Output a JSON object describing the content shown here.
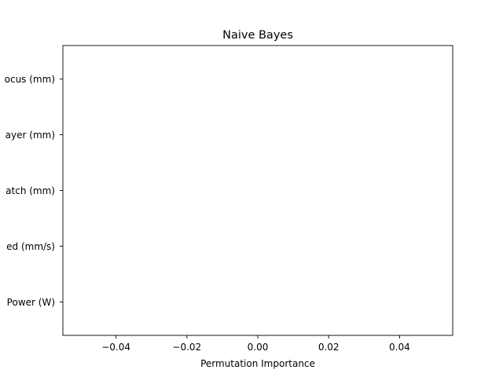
{
  "chart_data": {
    "type": "bar",
    "orientation": "horizontal",
    "title": "Naive Bayes",
    "xlabel": "Permutation Importance",
    "ylabel": "",
    "categories": [
      "Laser Power (W)",
      "Scan Speed (mm/s)",
      "Hatch (mm)",
      "Layer (mm)",
      "Focus (mm)"
    ],
    "category_labels_visible": [
      "Power (W)",
      "ed (mm/s)",
      "atch (mm)",
      "ayer (mm)",
      "ocus (mm)"
    ],
    "values": [
      0,
      0,
      0,
      0,
      0
    ],
    "xlim": [
      -0.055,
      0.055
    ],
    "xticks": [
      -0.04,
      -0.02,
      0.0,
      0.02,
      0.04
    ],
    "xtick_labels": [
      "−0.04",
      "−0.02",
      "0.00",
      "0.02",
      "0.04"
    ],
    "grid": false,
    "colors": {
      "axes": "#000000",
      "text": "#000000",
      "background": "#ffffff",
      "bar": "#1f77b4"
    }
  }
}
